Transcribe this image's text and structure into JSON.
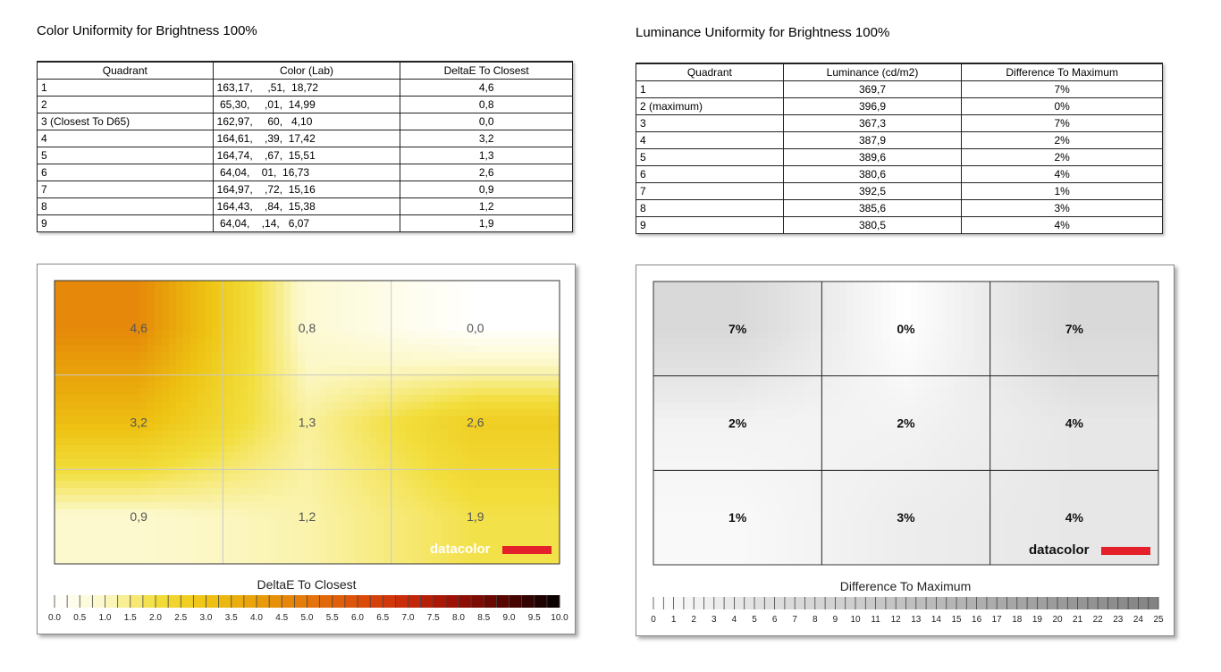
{
  "colors": {
    "color_scale_high": "#000000",
    "color_scale_mid": "#e8a000",
    "lum_scale_high": "#777777",
    "brand_red": "#e4202a"
  },
  "left": {
    "title": "Color Uniformity for Brightness 100%",
    "headers": [
      "Quadrant",
      "Color (Lab)",
      "DeltaE To Closest"
    ],
    "rows": [
      [
        "1",
        "163,17,     ,51,  18,72",
        "4,6"
      ],
      [
        "2",
        " 65,30,     ,01,  14,99",
        "0,8"
      ],
      [
        "3 (Closest To D65)",
        "162,97,     60,   4,10",
        "0,0"
      ],
      [
        "4",
        "164,61,    ,39,  17,42",
        "3,2"
      ],
      [
        "5",
        "164,74,    ,67,  15,51",
        "1,3"
      ],
      [
        "6",
        " 64,04,    01,  16,73",
        "2,6"
      ],
      [
        "7",
        "164,97,    ,72,  15,16",
        "0,9"
      ],
      [
        "8",
        "164,43,    ,84,  15,38",
        "1,2"
      ],
      [
        "9",
        " 64,04,    ,14,   6,07",
        "1,9"
      ]
    ]
  },
  "right": {
    "title": "Luminance Uniformity for Brightness 100%",
    "headers": [
      "Quadrant",
      "Luminance (cd/m2)",
      "Difference To Maximum"
    ],
    "rows": [
      [
        "1",
        "369,7",
        "7%"
      ],
      [
        "2 (maximum)",
        "396,9",
        "0%"
      ],
      [
        "3",
        "367,3",
        "7%"
      ],
      [
        "4",
        "387,9",
        "2%"
      ],
      [
        "5",
        "389,6",
        "2%"
      ],
      [
        "6",
        "380,6",
        "4%"
      ],
      [
        "7",
        "392,5",
        "1%"
      ],
      [
        "8",
        "385,6",
        "3%"
      ],
      [
        "9",
        "380,5",
        "4%"
      ]
    ]
  },
  "chart_data": [
    {
      "type": "heatmap",
      "title": "DeltaE To Closest",
      "grid": true,
      "rows": 3,
      "cols": 3,
      "cell_labels": [
        [
          "4,6",
          "0,8",
          "0,0"
        ],
        [
          "3,2",
          "1,3",
          "2,6"
        ],
        [
          "0,9",
          "1,2",
          "1,9"
        ]
      ],
      "values": [
        [
          4.6,
          0.8,
          0.0
        ],
        [
          3.2,
          1.3,
          2.6
        ],
        [
          0.9,
          1.2,
          1.9
        ]
      ],
      "scale_min": 0,
      "scale_max": 10,
      "scale_ticks": [
        "0.0",
        "0.5",
        "1.0",
        "1.5",
        "2.0",
        "2.5",
        "3.0",
        "3.5",
        "4.0",
        "4.5",
        "5.0",
        "5.5",
        "6.0",
        "6.5",
        "7.0",
        "7.5",
        "8.0",
        "8.5",
        "9.0",
        "9.5",
        "10.0"
      ],
      "logo": "datacolor"
    },
    {
      "type": "heatmap",
      "title": "Difference To Maximum",
      "grid": true,
      "rows": 3,
      "cols": 3,
      "cell_labels": [
        [
          "7%",
          "0%",
          "7%"
        ],
        [
          "2%",
          "2%",
          "4%"
        ],
        [
          "1%",
          "3%",
          "4%"
        ]
      ],
      "values": [
        [
          7,
          0,
          7
        ],
        [
          2,
          2,
          4
        ],
        [
          1,
          3,
          4
        ]
      ],
      "scale_min": 0,
      "scale_max": 25,
      "scale_ticks": [
        "0",
        "1",
        "2",
        "3",
        "4",
        "5",
        "6",
        "7",
        "8",
        "9",
        "10",
        "11",
        "12",
        "13",
        "14",
        "15",
        "16",
        "17",
        "18",
        "19",
        "20",
        "21",
        "22",
        "23",
        "24",
        "25"
      ],
      "logo": "datacolor"
    }
  ]
}
